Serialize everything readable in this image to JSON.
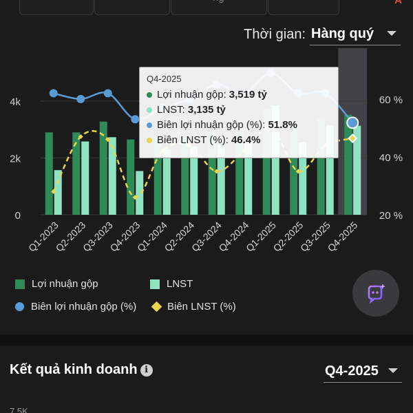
{
  "header": {
    "tabs": [
      {
        "label": ""
      },
      {
        "label": ""
      },
      {
        "label": "ng"
      },
      {
        "label": ""
      }
    ],
    "right_label": "A"
  },
  "time_filter": {
    "label": "Thời gian:",
    "value": "Hàng quý"
  },
  "chart_data": {
    "type": "bar",
    "categories": [
      "Q1-2023",
      "Q2-2023",
      "Q3-2023",
      "Q4-2023",
      "Q1-2024",
      "Q2-2024",
      "Q3-2024",
      "Q4-2024",
      "Q1-2025",
      "Q2-2025",
      "Q3-2025",
      "Q4-2025"
    ],
    "left_axis": {
      "ticks": [
        "0",
        "2k",
        "4k"
      ],
      "min": 0,
      "max": 5500
    },
    "right_axis": {
      "ticks": [
        "20 %",
        "40 %",
        "60 %"
      ],
      "min": 20,
      "max": 74
    },
    "series": [
      {
        "name": "Lợi nhuận gộp",
        "kind": "bar",
        "axis": "left",
        "color": "#2e8b57",
        "values": [
          2900,
          2900,
          3280,
          2650,
          2750,
          2800,
          2900,
          3000,
          3700,
          3100,
          3400,
          3519
        ]
      },
      {
        "name": "LNST",
        "kind": "bar",
        "axis": "left",
        "color": "#8fe3c3",
        "values": [
          1570,
          2580,
          2730,
          1540,
          2300,
          2400,
          2450,
          2600,
          3850,
          2550,
          3150,
          3135
        ]
      },
      {
        "name": "Biên lợi nhuận gộp (%)",
        "kind": "line",
        "axis": "right",
        "color": "#5b9bd5",
        "values": [
          62,
          60,
          62,
          53,
          57,
          60,
          65,
          62,
          69,
          62,
          62,
          51.8
        ]
      },
      {
        "name": "Biên LNST (%)",
        "kind": "line-dashed",
        "axis": "right",
        "color": "#e8d44d",
        "values": [
          28,
          47,
          46,
          26,
          42,
          44,
          35,
          42,
          50,
          35,
          44,
          46.4
        ]
      }
    ],
    "legend_position": "bottom"
  },
  "legend": {
    "items": [
      {
        "label": "Lợi nhuận gộp"
      },
      {
        "label": "LNST"
      },
      {
        "label": "Biên lợi nhuận gộp (%)"
      },
      {
        "label": "Biên LNST (%)"
      }
    ]
  },
  "tooltip": {
    "title": "Q4-2025",
    "rows": [
      {
        "label": "Lợi nhuận gộp:",
        "value": "3,519 tỷ",
        "color": "#2e8b57"
      },
      {
        "label": "LNST:",
        "value": "3,135 tỷ",
        "color": "#8fe3c3"
      },
      {
        "label": "Biên lợi nhuận gộp (%):",
        "value": "51.8%",
        "color": "#5b9bd5"
      },
      {
        "label": "Biên LNST (%):",
        "value": "46.4%",
        "color": "#e8d44d"
      }
    ]
  },
  "business_section": {
    "title": "Kết quả kinh doanh",
    "period": "Q4-2025",
    "axis_label": "7.5K"
  },
  "assistant": {
    "icon": "ai-assistant-icon"
  }
}
